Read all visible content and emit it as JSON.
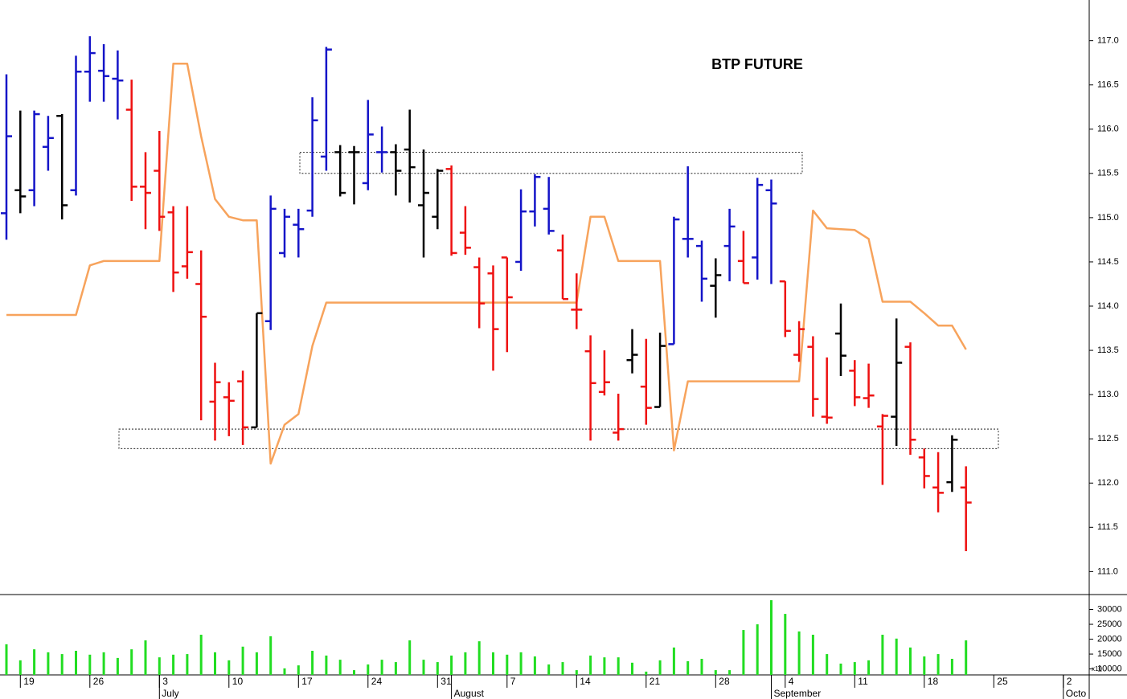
{
  "chart_data": [
    {
      "type": "ohlc",
      "title": "BTP FUTURE",
      "categories": [
        null,
        "19",
        null,
        null,
        null,
        null,
        "26",
        null,
        null,
        null,
        null,
        "3",
        null,
        null,
        null,
        null,
        "10",
        null,
        null,
        null,
        null,
        "17",
        null,
        null,
        null,
        null,
        "24",
        null,
        null,
        null,
        null,
        "31",
        null,
        null,
        null,
        null,
        "7",
        null,
        null,
        null,
        null,
        "14",
        null,
        null,
        null,
        null,
        "21",
        null,
        null,
        null,
        null,
        "28",
        null,
        null,
        null,
        null,
        "4",
        null,
        null,
        null,
        null,
        "11",
        null,
        null,
        null,
        null,
        "18",
        null,
        null,
        null,
        null,
        "25",
        null,
        null,
        null,
        null,
        "2",
        null
      ],
      "month_categories": [
        null,
        null,
        null,
        null,
        null,
        null,
        null,
        null,
        null,
        null,
        null,
        "July",
        null,
        null,
        null,
        null,
        null,
        null,
        null,
        null,
        null,
        null,
        null,
        null,
        null,
        null,
        null,
        null,
        null,
        null,
        null,
        null,
        "August",
        null,
        null,
        null,
        null,
        null,
        null,
        null,
        null,
        null,
        null,
        null,
        null,
        null,
        null,
        null,
        null,
        null,
        null,
        null,
        null,
        null,
        null,
        "September",
        null,
        null,
        null,
        null,
        null,
        null,
        null,
        null,
        null,
        null,
        null,
        null,
        null,
        null,
        null,
        null,
        null,
        null,
        null,
        null,
        "Octo",
        null
      ],
      "open": [
        115.05,
        115.31,
        115.31,
        115.8,
        116.15,
        115.31,
        116.65,
        116.66,
        116.57,
        116.22,
        115.35,
        115.53,
        115.06,
        114.45,
        114.25,
        112.92,
        112.97,
        113.15,
        112.63,
        113.83,
        114.6,
        114.92,
        115.08,
        115.69,
        115.74,
        115.74,
        115.39,
        115.74,
        115.74,
        115.77,
        115.14,
        115.01,
        115.55,
        114.83,
        114.44,
        114.37,
        114.55,
        114.5,
        115.07,
        115.1,
        114.63,
        113.96,
        113.49,
        113.03,
        112.57,
        113.39,
        113.09,
        112.86,
        113.57,
        114.76,
        114.68,
        114.23,
        114.68,
        114.51,
        114.55,
        115.31,
        114.28,
        113.45,
        113.54,
        112.75,
        113.69,
        113.27,
        112.96,
        112.64,
        112.75,
        113.54,
        112.29,
        111.95,
        112.01,
        111.95,
        null,
        null,
        null,
        null,
        null,
        null,
        null,
        null
      ],
      "high": [
        116.62,
        116.21,
        116.21,
        116.15,
        116.17,
        116.83,
        117.05,
        116.96,
        116.89,
        116.56,
        115.74,
        115.98,
        115.13,
        115.13,
        114.63,
        113.36,
        113.14,
        113.27,
        113.92,
        115.25,
        115.1,
        115.1,
        116.36,
        116.93,
        115.82,
        115.81,
        116.33,
        116.03,
        115.83,
        116.22,
        115.77,
        115.55,
        115.59,
        115.13,
        114.55,
        114.46,
        114.55,
        115.32,
        115.49,
        115.46,
        114.81,
        114.37,
        113.67,
        113.5,
        113.01,
        113.74,
        113.63,
        113.7,
        115.01,
        115.58,
        114.74,
        114.54,
        115.1,
        114.85,
        115.45,
        115.43,
        114.28,
        113.83,
        113.66,
        113.42,
        114.03,
        113.39,
        113.35,
        112.78,
        113.86,
        113.59,
        112.39,
        112.35,
        112.54,
        112.19,
        null,
        null,
        null,
        null,
        null,
        null,
        null,
        null
      ],
      "low": [
        114.75,
        115.05,
        115.13,
        115.53,
        114.98,
        115.25,
        116.31,
        116.31,
        116.11,
        115.19,
        114.87,
        114.85,
        114.16,
        114.31,
        112.71,
        112.48,
        112.53,
        112.43,
        112.63,
        113.73,
        114.55,
        114.55,
        115.01,
        115.53,
        115.24,
        115.15,
        115.31,
        115.51,
        115.25,
        115.17,
        114.55,
        114.87,
        114.57,
        114.58,
        113.75,
        113.27,
        113.48,
        114.4,
        114.9,
        114.81,
        114.08,
        113.74,
        112.48,
        112.99,
        112.48,
        113.24,
        112.66,
        112.86,
        113.57,
        114.55,
        114.05,
        113.87,
        114.28,
        114.26,
        114.3,
        114.25,
        113.65,
        113.37,
        112.75,
        112.67,
        113.21,
        112.87,
        112.85,
        111.98,
        112.42,
        112.32,
        111.94,
        111.67,
        111.9,
        111.23,
        null,
        null,
        null,
        null,
        null,
        null,
        null,
        null
      ],
      "close": [
        115.92,
        115.24,
        116.17,
        115.9,
        115.14,
        116.65,
        116.86,
        116.6,
        116.55,
        115.35,
        115.28,
        115.01,
        114.38,
        114.61,
        113.88,
        113.14,
        112.93,
        112.63,
        113.92,
        115.1,
        115.01,
        114.87,
        116.1,
        116.9,
        115.28,
        115.74,
        115.94,
        115.74,
        115.53,
        115.57,
        115.28,
        115.53,
        114.6,
        114.66,
        114.03,
        113.74,
        114.1,
        115.07,
        115.46,
        114.85,
        114.08,
        113.96,
        113.13,
        113.14,
        112.61,
        113.45,
        112.85,
        113.55,
        114.98,
        114.76,
        114.31,
        114.35,
        114.9,
        114.26,
        115.37,
        115.16,
        113.72,
        113.74,
        112.95,
        112.74,
        113.44,
        112.97,
        112.99,
        112.76,
        113.36,
        112.49,
        112.08,
        111.89,
        112.49,
        111.78,
        null,
        null,
        null,
        null,
        null,
        null,
        null,
        null
      ],
      "colors": [
        "#1414c8",
        "#000000",
        "#1414c8",
        "#1414c8",
        "#000000",
        "#1414c8",
        "#1414c8",
        "#1414c8",
        "#1414c8",
        "#ee1111",
        "#ee1111",
        "#ee1111",
        "#ee1111",
        "#ee1111",
        "#ee1111",
        "#ee1111",
        "#ee1111",
        "#ee1111",
        "#000000",
        "#1414c8",
        "#1414c8",
        "#1414c8",
        "#1414c8",
        "#1414c8",
        "#000000",
        "#000000",
        "#1414c8",
        "#1414c8",
        "#000000",
        "#000000",
        "#000000",
        "#000000",
        "#ee1111",
        "#ee1111",
        "#ee1111",
        "#ee1111",
        "#ee1111",
        "#1414c8",
        "#1414c8",
        "#1414c8",
        "#ee1111",
        "#ee1111",
        "#ee1111",
        "#ee1111",
        "#ee1111",
        "#000000",
        "#ee1111",
        "#000000",
        "#1414c8",
        "#1414c8",
        "#1414c8",
        "#000000",
        "#1414c8",
        "#ee1111",
        "#1414c8",
        "#1414c8",
        "#ee1111",
        "#ee1111",
        "#ee1111",
        "#ee1111",
        "#000000",
        "#ee1111",
        "#ee1111",
        "#ee1111",
        "#000000",
        "#ee1111",
        "#ee1111",
        "#ee1111",
        "#000000",
        "#ee1111",
        null,
        null,
        null,
        null,
        null,
        null,
        null,
        null
      ],
      "line": {
        "color": "#f7a35c",
        "values": [
          113.9,
          113.9,
          113.9,
          113.9,
          113.9,
          113.9,
          114.46,
          114.51,
          114.51,
          114.51,
          114.51,
          114.51,
          116.74,
          116.74,
          115.92,
          115.21,
          115.01,
          114.97,
          114.97,
          112.22,
          112.66,
          112.78,
          113.55,
          114.04,
          114.04,
          114.04,
          114.04,
          114.04,
          114.04,
          114.04,
          114.04,
          114.04,
          114.04,
          114.04,
          114.04,
          114.04,
          114.04,
          114.04,
          114.04,
          114.04,
          114.04,
          114.04,
          115.01,
          115.01,
          114.51,
          114.51,
          114.51,
          114.51,
          112.37,
          113.15,
          113.15,
          113.15,
          113.15,
          113.15,
          113.15,
          113.15,
          113.15,
          113.15,
          115.08,
          114.88,
          114.87,
          114.86,
          114.76,
          114.05,
          114.05,
          114.05,
          113.92,
          113.78,
          113.78,
          113.51,
          null,
          null,
          null,
          null,
          null,
          null,
          null,
          null
        ]
      },
      "zones": [
        [
          115.5,
          115.74
        ],
        [
          112.39,
          112.61
        ]
      ],
      "ylim": [
        110.74,
        117.46
      ],
      "yticks": [
        {
          "value": 111,
          "label": "111.0"
        },
        111.5,
        {
          "value": 112,
          "label": "112.0"
        },
        112.5,
        {
          "value": 113,
          "label": "113.0"
        },
        113.5,
        {
          "value": 114,
          "label": "114.0"
        },
        114.5,
        {
          "value": 115,
          "label": "115.0"
        },
        115.5,
        {
          "value": 116,
          "label": "116.0"
        },
        116.5,
        {
          "value": 117,
          "label": "117.0"
        }
      ]
    },
    {
      "type": "bar",
      "color": "#22dd22",
      "axis_note": "x10",
      "values": [
        18300,
        12900,
        16600,
        15600,
        15000,
        16100,
        14800,
        15600,
        13700,
        16600,
        19600,
        13900,
        14800,
        15000,
        21500,
        15600,
        12900,
        17500,
        15600,
        21000,
        10200,
        11200,
        16100,
        14500,
        13100,
        9600,
        11500,
        13100,
        12300,
        19600,
        13100,
        12300,
        14500,
        15600,
        19300,
        15600,
        14800,
        15600,
        14200,
        11500,
        12300,
        9600,
        14500,
        13900,
        13900,
        12100,
        9100,
        12900,
        17200,
        12600,
        13400,
        9600,
        9600,
        23100,
        25000,
        33100,
        28500,
        22600,
        21500,
        15000,
        11800,
        12300,
        12900,
        21500,
        20200,
        17200,
        14200,
        15000,
        13400,
        19600,
        null,
        null,
        null,
        null,
        null,
        null,
        null,
        null
      ],
      "ylim": [
        8000,
        35000
      ],
      "yticks": [
        10000,
        15000,
        20000,
        25000,
        30000
      ]
    }
  ]
}
